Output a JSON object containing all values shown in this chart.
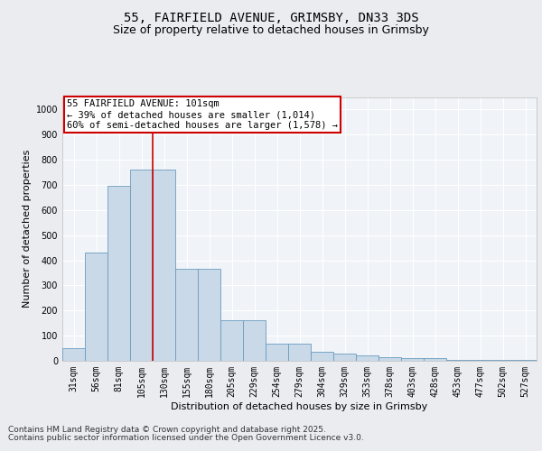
{
  "title_line1": "55, FAIRFIELD AVENUE, GRIMSBY, DN33 3DS",
  "title_line2": "Size of property relative to detached houses in Grimsby",
  "xlabel": "Distribution of detached houses by size in Grimsby",
  "ylabel": "Number of detached properties",
  "categories": [
    "31sqm",
    "56sqm",
    "81sqm",
    "105sqm",
    "130sqm",
    "155sqm",
    "180sqm",
    "205sqm",
    "229sqm",
    "254sqm",
    "279sqm",
    "304sqm",
    "329sqm",
    "353sqm",
    "378sqm",
    "403sqm",
    "428sqm",
    "453sqm",
    "477sqm",
    "502sqm",
    "527sqm"
  ],
  "values": [
    50,
    430,
    695,
    760,
    760,
    365,
    365,
    160,
    160,
    70,
    70,
    37,
    28,
    22,
    15,
    12,
    10,
    4,
    2,
    4,
    4
  ],
  "bar_color": "#c9d9e8",
  "bar_edge_color": "#6a9bbf",
  "vline_x": 3.5,
  "vline_color": "#cc0000",
  "annotation_text": "55 FAIRFIELD AVENUE: 101sqm\n← 39% of detached houses are smaller (1,014)\n60% of semi-detached houses are larger (1,578) →",
  "annotation_box_color": "#cc0000",
  "ylim": [
    0,
    1050
  ],
  "yticks": [
    0,
    100,
    200,
    300,
    400,
    500,
    600,
    700,
    800,
    900,
    1000
  ],
  "footer_line1": "Contains HM Land Registry data © Crown copyright and database right 2025.",
  "footer_line2": "Contains public sector information licensed under the Open Government Licence v3.0.",
  "bg_color": "#eaecf0",
  "plot_bg_color": "#f0f4f8",
  "grid_color": "#ffffff",
  "title_fontsize": 10,
  "subtitle_fontsize": 9,
  "tick_fontsize": 7,
  "label_fontsize": 8,
  "footer_fontsize": 6.5,
  "ann_fontsize": 7.5
}
